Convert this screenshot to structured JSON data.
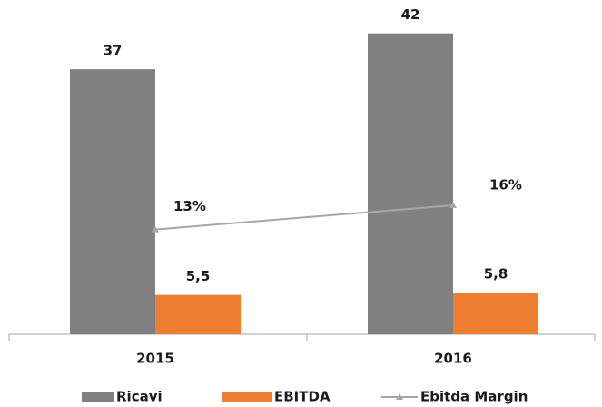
{
  "chart_data": {
    "type": "bar",
    "categories": [
      "2015",
      "2016"
    ],
    "series": [
      {
        "name": "Ricavi",
        "color": "#808080",
        "values": [
          37,
          42
        ]
      },
      {
        "name": "EBITDA",
        "color": "#ed7d31",
        "values": [
          5.5,
          5.8
        ],
        "value_labels": [
          "5,5",
          "5,8"
        ]
      },
      {
        "name": "Ebitda Margin",
        "color": "#a6a6a6",
        "type": "line",
        "axis": "y2",
        "marker": "triangle",
        "values": [
          13,
          16
        ],
        "value_labels": [
          "13%",
          "16%"
        ]
      }
    ],
    "ylim": [
      0,
      45
    ],
    "y2lim": [
      0,
      40
    ],
    "grid": false,
    "legend": "bottom"
  }
}
